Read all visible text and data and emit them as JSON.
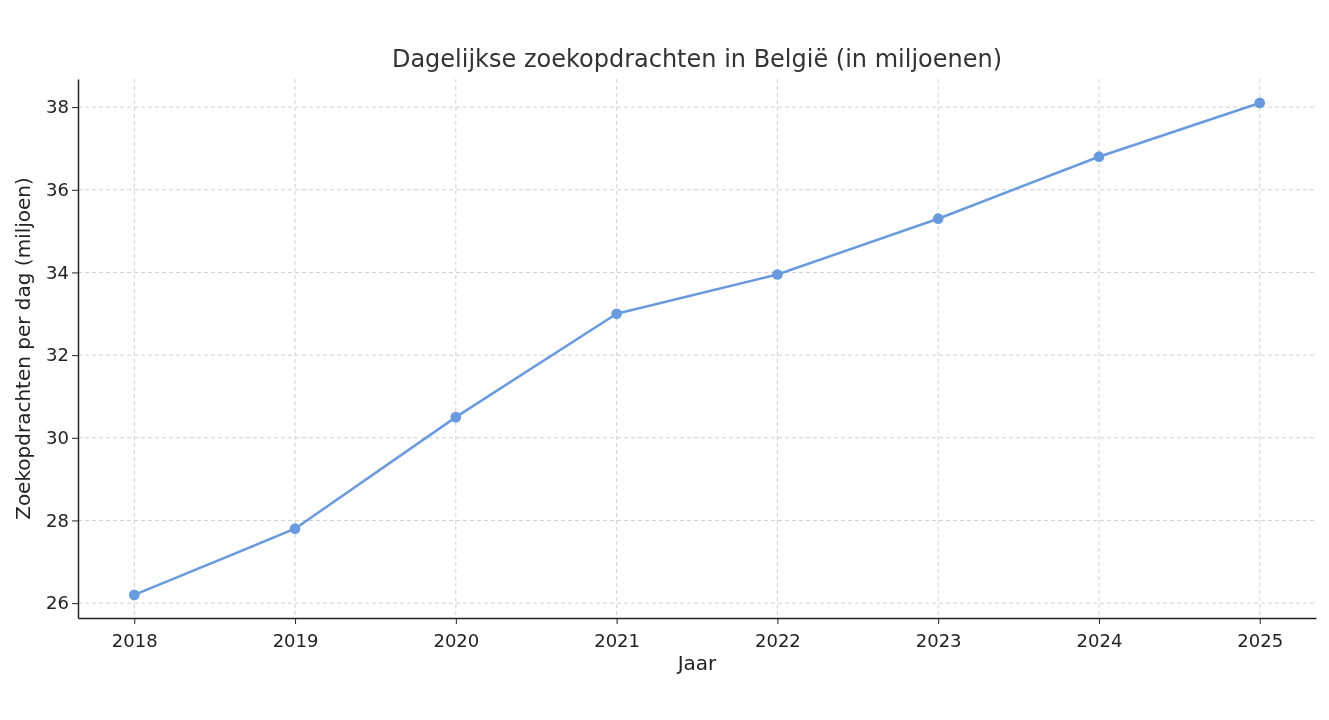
{
  "chart_data": {
    "type": "line",
    "title": "Dagelijkse zoekopdrachten in België (in miljoenen)",
    "xlabel": "Jaar",
    "ylabel": "Zoekopdrachten per dag (miljoen)",
    "x": [
      2018,
      2019,
      2020,
      2021,
      2022,
      2023,
      2024,
      2025
    ],
    "series": [
      {
        "color": "#6a9ade",
        "values": [
          26.2,
          27.8,
          30.5,
          33.0,
          33.95,
          35.3,
          36.8,
          38.1
        ]
      }
    ],
    "xlim": [
      2017.65,
      2025.35
    ],
    "xticks": [
      2018,
      2019,
      2020,
      2021,
      2022,
      2023,
      2024,
      2025
    ],
    "ylim": [
      25.64,
      38.68
    ],
    "yticks": [
      26,
      28,
      30,
      32,
      34,
      36,
      38
    ],
    "grid": true,
    "marker": "circle",
    "line_style": "solid"
  }
}
